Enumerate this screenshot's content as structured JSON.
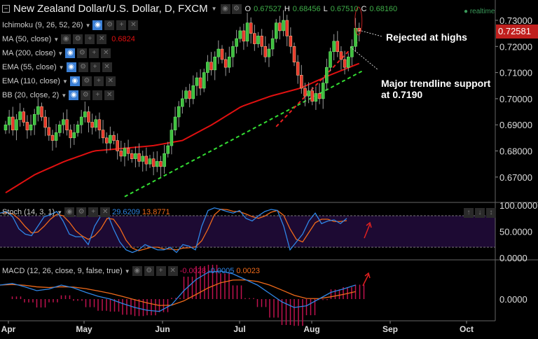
{
  "header": {
    "title": "New Zealand Dollar/U.S. Dollar, D, FXCM",
    "o_label": "O",
    "o": "0.67527",
    "h_label": "H",
    "h": "0.68456",
    "l_label": "L",
    "l": "0.67510",
    "c_label": "C",
    "c": "0.68160",
    "realtime": "realtime"
  },
  "indicators": [
    {
      "label": "Ichimoku (9, 26, 52, 26)",
      "value": ""
    },
    {
      "label": "MA (50, close)",
      "value": "0.6824"
    },
    {
      "label": "MA (200, close)",
      "value": ""
    },
    {
      "label": "EMA (55, close)",
      "value": ""
    },
    {
      "label": "EMA (110, close)",
      "value": ""
    },
    {
      "label": "BB (20, close, 2)",
      "value": ""
    }
  ],
  "stoch": {
    "label": "Stoch (14, 3, 1)",
    "k": "29.6209",
    "d": "13.8771"
  },
  "macd": {
    "label": "MACD (12, 26, close, 9, false, true)",
    "hist": "-0.0028",
    "macd": "-0.0005",
    "signal": "0.0023"
  },
  "annotations": {
    "rejected": "Rejected at highs",
    "support_line1": "Major trendline support",
    "support_line2": "at 0.7190"
  },
  "last_price": "0.72581",
  "colors": {
    "up": "#3fbf3f",
    "down": "#e8372a",
    "ma": "#e01010",
    "green_trend": "#33dd33",
    "red_trend": "#e82020",
    "k": "#2f86e6",
    "d": "#f06a1a",
    "stoch_bg": "#1d0a33",
    "hist": "#c0124e"
  },
  "chart_data": {
    "type": "candlestick",
    "price_axis": {
      "ticks": [
        "0.73000",
        "0.72000",
        "0.71000",
        "0.70000",
        "0.69000",
        "0.68000",
        "0.67000"
      ],
      "range": [
        0.6625,
        0.7375
      ]
    },
    "stoch_axis": {
      "ticks": [
        "100.0000",
        "50.0000",
        "0.0000"
      ],
      "bands": [
        20,
        80
      ]
    },
    "macd_axis": {
      "ticks": [
        "0.0000"
      ]
    },
    "x_ticks": [
      "Apr",
      "May",
      "Jun",
      "Jul",
      "Aug",
      "Sep",
      "Oct"
    ],
    "closes": [
      0.69,
      0.693,
      0.688,
      0.692,
      0.695,
      0.691,
      0.688,
      0.69,
      0.694,
      0.697,
      0.693,
      0.689,
      0.686,
      0.684,
      0.687,
      0.69,
      0.692,
      0.688,
      0.685,
      0.687,
      0.69,
      0.693,
      0.695,
      0.691,
      0.689,
      0.692,
      0.688,
      0.685,
      0.683,
      0.686,
      0.684,
      0.68,
      0.678,
      0.681,
      0.679,
      0.677,
      0.679,
      0.676,
      0.678,
      0.675,
      0.677,
      0.674,
      0.676,
      0.674,
      0.679,
      0.682,
      0.688,
      0.693,
      0.697,
      0.7,
      0.703,
      0.7,
      0.705,
      0.708,
      0.704,
      0.71,
      0.714,
      0.711,
      0.716,
      0.719,
      0.715,
      0.712,
      0.716,
      0.72,
      0.723,
      0.726,
      0.722,
      0.729,
      0.725,
      0.721,
      0.724,
      0.72,
      0.716,
      0.719,
      0.723,
      0.729,
      0.726,
      0.73,
      0.724,
      0.72,
      0.714,
      0.709,
      0.704,
      0.701,
      0.703,
      0.699,
      0.702,
      0.7,
      0.706,
      0.712,
      0.718,
      0.722,
      0.718,
      0.715,
      0.712,
      0.716,
      0.72,
      0.727,
      0.7258
    ],
    "ma50": [
      0.664,
      0.671,
      0.676,
      0.68,
      0.681,
      0.682,
      0.684,
      0.69,
      0.697,
      0.701,
      0.704,
      0.709,
      0.7135
    ],
    "green_trendline": [
      [
        33,
        0.6625
      ],
      [
        99,
        0.7107
      ]
    ],
    "red_trendline": [
      [
        75,
        0.6893
      ],
      [
        98,
        0.7224
      ]
    ],
    "stoch_k": [
      85,
      88,
      78,
      55,
      45,
      42,
      60,
      78,
      82,
      88,
      70,
      45,
      40,
      40,
      25,
      60,
      80,
      85,
      55,
      30,
      15,
      10,
      15,
      25,
      20,
      15,
      15,
      20,
      10,
      25,
      22,
      15,
      60,
      90,
      95,
      92,
      88,
      85,
      90,
      75,
      70,
      80,
      88,
      92,
      90,
      60,
      15,
      30,
      45,
      70,
      85,
      65,
      70,
      72,
      65,
      75
    ],
    "macd_line": [
      0.0025,
      0.0028,
      0.0022,
      0.0015,
      0.0018,
      0.0025,
      0.002,
      0.0012,
      0.0005,
      0.0,
      -0.0008,
      -0.0015,
      -0.002,
      -0.0022,
      -0.001,
      0.0015,
      0.0035,
      0.0048,
      0.005,
      0.0045,
      0.0035,
      0.0025,
      0.001,
      -0.0005,
      -0.0015,
      -0.0012,
      0.0,
      0.0012,
      0.0018,
      0.0025
    ]
  }
}
